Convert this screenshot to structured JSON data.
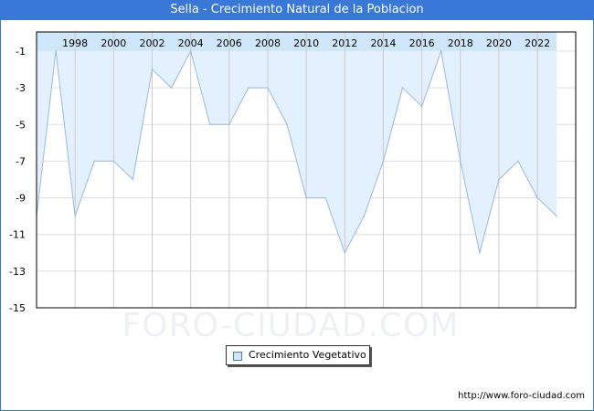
{
  "title": "Sella - Crecimiento Natural de la Poblacion",
  "source": "http://www.foro-ciudad.com",
  "watermark": "FORO-CIUDAD.COM",
  "colors": {
    "title_bg": "#3a78d8",
    "fill": "#e3f0fd",
    "band": "#cfe7fb",
    "line": "#9ab8e8",
    "grid": "#dddddd"
  },
  "chart_data": {
    "type": "area",
    "title": "Sella - Crecimiento Natural de la Poblacion",
    "xlabel": "",
    "ylabel": "",
    "x": [
      1996,
      1997,
      1998,
      1999,
      2000,
      2001,
      2002,
      2003,
      2004,
      2005,
      2006,
      2007,
      2008,
      2009,
      2010,
      2011,
      2012,
      2013,
      2014,
      2015,
      2016,
      2017,
      2018,
      2019,
      2020,
      2021,
      2022,
      2023
    ],
    "series": [
      {
        "name": "Crecimiento Vegetativo",
        "values": [
          -10,
          -1,
          -10,
          -7,
          -7,
          -8,
          -2,
          -3,
          -1,
          -5,
          -5,
          -3,
          -3,
          -5,
          -9,
          -9,
          -12,
          -10,
          -7,
          -3,
          -4,
          -1,
          -7,
          -12,
          -8,
          -7,
          -9,
          -10
        ]
      }
    ],
    "xticks": [
      "1998",
      "2000",
      "2002",
      "2004",
      "2006",
      "2008",
      "2010",
      "2012",
      "2014",
      "2016",
      "2018",
      "2020",
      "2022"
    ],
    "yticks": [
      "-1",
      "-3",
      "-5",
      "-7",
      "-9",
      "-11",
      "-13",
      "-15"
    ],
    "ylim": [
      -15,
      0
    ],
    "xlim": [
      1996,
      2024
    ],
    "grid": true,
    "legend": "bottom-center"
  }
}
